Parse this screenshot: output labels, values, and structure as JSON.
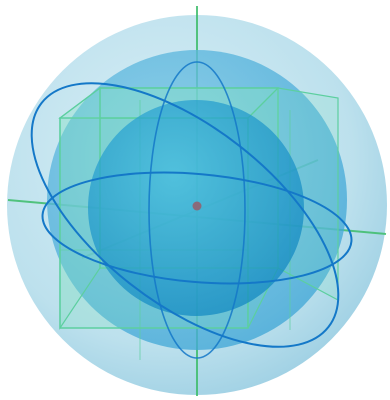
{
  "figure": {
    "kind": "3d-geometric-illustration",
    "shapes": [
      {
        "role": "outer-sphere",
        "color": "#bfe2ee"
      },
      {
        "role": "middle-sphere",
        "color": "#5fb9de"
      },
      {
        "role": "cube",
        "color": "#6ed6b4"
      },
      {
        "role": "inner-sphere",
        "color": "#1f9fd2"
      },
      {
        "role": "center-point",
        "color": "#8a6a7a"
      }
    ],
    "axis_color": "#3dbd6a",
    "orbit_color": "#1478c8"
  }
}
